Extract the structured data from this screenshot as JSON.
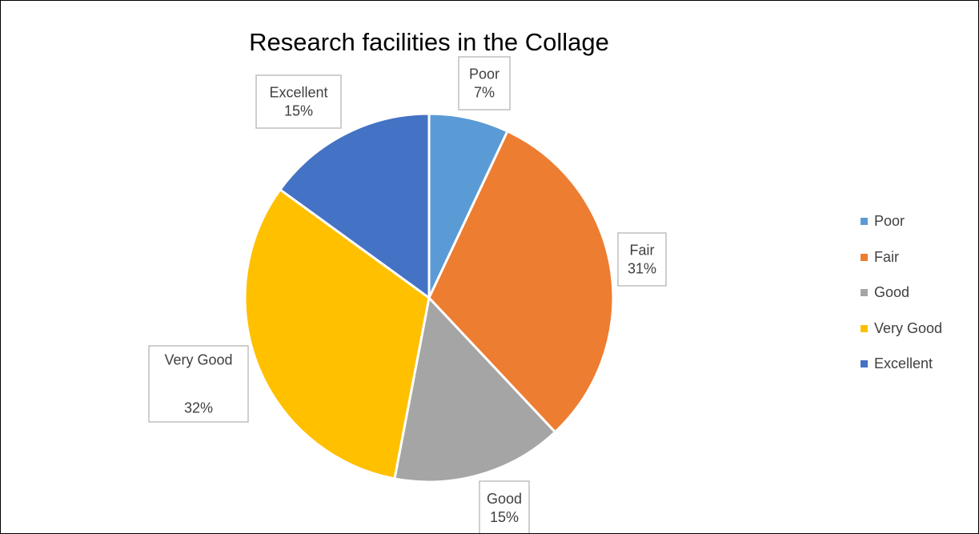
{
  "chart_data": {
    "type": "pie",
    "title": "Research facilities in the Collage",
    "categories": [
      "Poor",
      "Fair",
      "Good",
      "Very Good",
      "Excellent"
    ],
    "values": [
      7,
      31,
      15,
      32,
      15
    ],
    "unit": "%",
    "colors": [
      "#5B9BD5",
      "#ED7D31",
      "#A5A5A5",
      "#FFC000",
      "#4472C4"
    ],
    "data_labels": [
      {
        "category": "Poor",
        "value": "7%"
      },
      {
        "category": "Fair",
        "value": "31%"
      },
      {
        "category": "Good",
        "value": "15%"
      },
      {
        "category": "Very Good",
        "value": "32%"
      },
      {
        "category": "Excellent",
        "value": "15%"
      }
    ],
    "legend_position": "right"
  }
}
